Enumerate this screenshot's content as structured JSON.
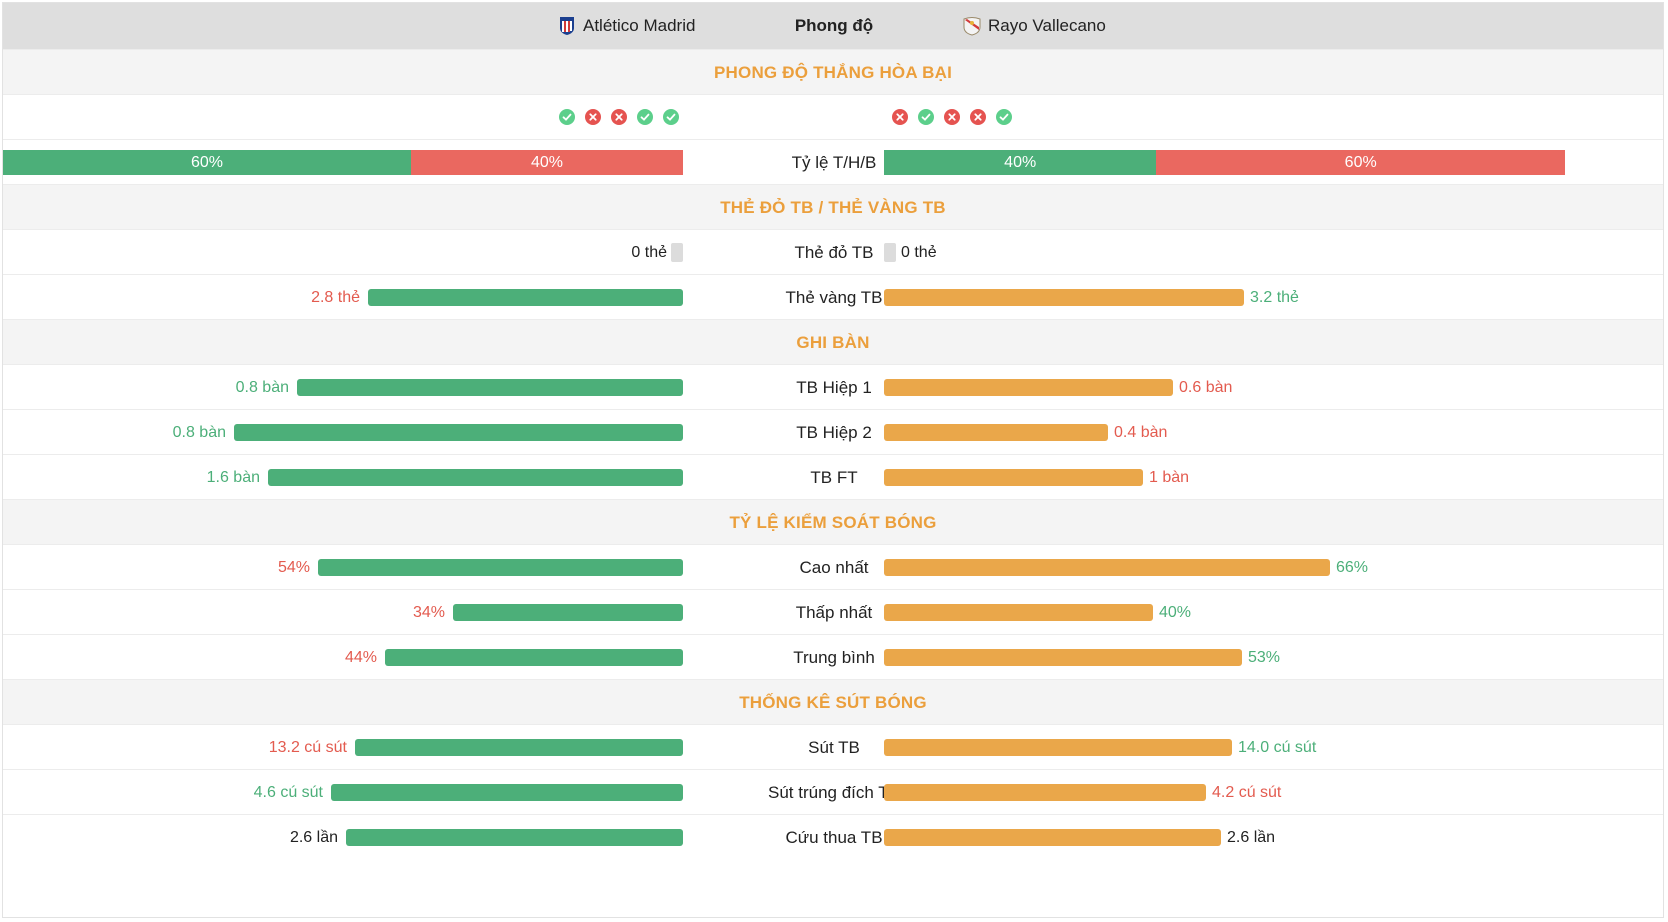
{
  "header": {
    "team_a": "Atlético Madrid",
    "title": "Phong độ",
    "team_b": "Rayo Vallecano"
  },
  "colors": {
    "accent": "#eb9f3c",
    "bar_left": "#4caf79",
    "bar_right": "#eaa74a",
    "win": "#5ccf8b",
    "loss": "#e55350"
  },
  "sections": {
    "form": "PHONG ĐỘ THẮNG HÒA BẠI",
    "cards": "THẺ ĐỎ TB / THẺ VÀNG TB",
    "goals": "GHI BÀN",
    "possession": "TỶ LỆ KIỂM SOÁT BÓNG",
    "shots": "THỐNG KÊ SÚT BÓNG"
  },
  "form": {
    "team_a": [
      "win",
      "loss",
      "loss",
      "win",
      "win"
    ],
    "team_b": [
      "loss",
      "win",
      "loss",
      "loss",
      "win"
    ]
  },
  "ratio": {
    "label": "Tỷ lệ T/H/B",
    "team_a": {
      "win_text": "60%",
      "loss_text": "40%",
      "win_fraction": 0.6
    },
    "team_b": {
      "win_text": "40%",
      "loss_text": "60%",
      "win_fraction": 0.4
    }
  },
  "rows": {
    "red": {
      "label": "Thẻ đỏ TB",
      "a": "0 thẻ",
      "b": "0 thẻ"
    },
    "yellow": {
      "label": "Thẻ vàng TB",
      "a": "2.8 thẻ",
      "b": "3.2 thẻ",
      "a_fraction": 0.463,
      "b_fraction": 0.53
    },
    "h1": {
      "label": "TB Hiệp 1",
      "a": "0.8 bàn",
      "b": "0.6 bàn",
      "a_fraction": 0.567,
      "b_fraction": 0.425
    },
    "h2": {
      "label": "TB Hiệp 2",
      "a": "0.8 bàn",
      "b": "0.4 bàn",
      "a_fraction": 0.661,
      "b_fraction": 0.33
    },
    "ft": {
      "label": "TB FT",
      "a": "1.6 bàn",
      "b": "1 bàn",
      "a_fraction": 0.61,
      "b_fraction": 0.381
    },
    "max": {
      "label": "Cao nhất",
      "a": "54%",
      "b": "66%",
      "a_fraction": 0.537,
      "b_fraction": 0.656
    },
    "min": {
      "label": "Thấp nhất",
      "a": "34%",
      "b": "40%",
      "a_fraction": 0.338,
      "b_fraction": 0.396
    },
    "avg": {
      "label": "Trung bình",
      "a": "44%",
      "b": "53%",
      "a_fraction": 0.438,
      "b_fraction": 0.527
    },
    "shots": {
      "label": "Sút TB",
      "a": "13.2 cú sút",
      "b": "14.0 cú sút",
      "a_fraction": 0.482,
      "b_fraction": 0.512
    },
    "on_target": {
      "label": "Sút trúng đích TB",
      "a": "4.6 cú sút",
      "b": "4.2 cú sút",
      "a_fraction": 0.518,
      "b_fraction": 0.474
    },
    "saves": {
      "label": "Cứu thua TB",
      "a": "2.6 lần",
      "b": "2.6 lần",
      "a_fraction": 0.496,
      "b_fraction": 0.496
    }
  }
}
